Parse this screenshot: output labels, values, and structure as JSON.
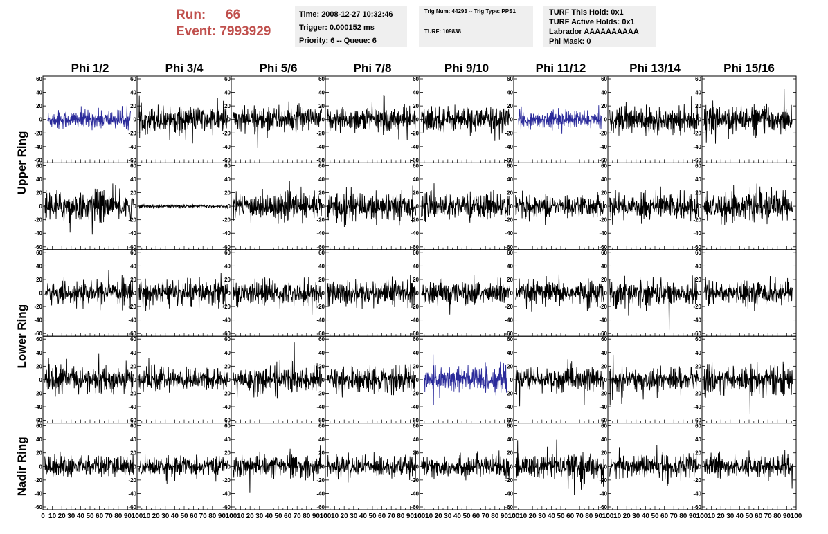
{
  "header": {
    "run_label": "Run:",
    "run_value": "66",
    "event_label": "Event:",
    "event_value": "7993929",
    "time": "Time: 2008-12-27 10:32:46",
    "trigger": "Trigger: 0.000152 ms",
    "priority": "Priority: 6 -- Queue: 6",
    "trig_num": "Trig Num: 44293 -- Trig Type: PPS1",
    "turf": "TURF: 109838",
    "turf_this_hold": "TURF This Hold: 0x1",
    "turf_active_holds": "TURF Active Holds: 0x1",
    "labrador": "Labrador AAAAAAAAAA",
    "phi_mask": "Phi Mask: 0"
  },
  "chart_data": {
    "type": "line",
    "phi_labels": [
      "Phi 1/2",
      "Phi 3/4",
      "Phi 5/6",
      "Phi 7/8",
      "Phi 9/10",
      "Phi 11/12",
      "Phi 13/14",
      "Phi 15/16"
    ],
    "ring_labels": [
      {
        "name": "Upper Ring",
        "rows": [
          0,
          1
        ]
      },
      {
        "name": "Lower Ring",
        "rows": [
          2,
          3
        ]
      },
      {
        "name": "Nadir Ring",
        "rows": [
          4
        ]
      }
    ],
    "ylim": [
      -60,
      60
    ],
    "yticks": [
      -60,
      -40,
      -20,
      0,
      20,
      40,
      60
    ],
    "xlim": [
      0,
      100
    ],
    "xticks": [
      0,
      10,
      20,
      30,
      40,
      50,
      60,
      70,
      80,
      90,
      100
    ],
    "samples_per_trace": 260,
    "trace_color": "#000000",
    "highlight_color": "#2a2a9a",
    "highlighted_panels": [
      [
        0,
        0
      ],
      [
        0,
        5
      ],
      [
        3,
        4
      ]
    ],
    "amplitude_rms": [
      [
        8,
        11,
        11,
        11,
        11,
        7,
        11,
        11
      ],
      [
        13,
        1.5,
        11,
        12,
        11,
        9,
        11,
        12
      ],
      [
        9,
        11,
        10,
        11,
        10,
        10,
        11,
        10
      ],
      [
        11,
        9,
        11,
        11,
        12,
        10,
        9,
        12
      ],
      [
        9,
        8,
        9,
        9,
        9,
        10,
        10,
        9
      ]
    ]
  }
}
